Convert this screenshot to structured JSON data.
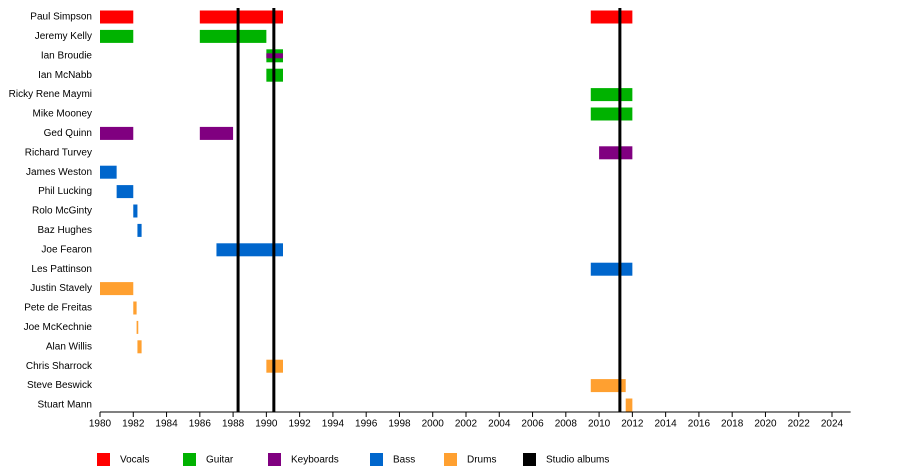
{
  "chart_data": {
    "type": "timeline",
    "categories": [
      "Paul Simpson",
      "Jeremy Kelly",
      "Ian Broudie",
      "Ian McNabb",
      "Ricky Rene Maymi",
      "Mike Mooney",
      "Ged Quinn",
      "Richard Turvey",
      "James Weston",
      "Phil Lucking",
      "Rolo McGinty",
      "Baz Hughes",
      "Joe Fearon",
      "Les Pattinson",
      "Justin Stavely",
      "Pete de Freitas",
      "Joe McKechnie",
      "Alan Willis",
      "Chris Sharrock",
      "Steve Beswick",
      "Stuart Mann"
    ],
    "series": [
      {
        "name": "Vocals",
        "color": "#ff0000",
        "values": [
          [
            [
              1980,
              1982
            ],
            [
              1986,
              1991
            ],
            [
              2009.5,
              2012
            ]
          ],
          [],
          [],
          [],
          [],
          [],
          [],
          [],
          [],
          [],
          [],
          [],
          [],
          [],
          [],
          [],
          [],
          [],
          [],
          [],
          []
        ]
      },
      {
        "name": "Guitar",
        "color": "#00b200",
        "values": [
          [],
          [
            [
              1980,
              1982
            ],
            [
              1986,
              1990
            ]
          ],
          [
            [
              1990,
              1991
            ]
          ],
          [
            [
              1990,
              1991
            ]
          ],
          [
            [
              2009.5,
              2012
            ]
          ],
          [
            [
              2009.5,
              2012
            ]
          ],
          [],
          [],
          [],
          [],
          [],
          [],
          [],
          [],
          [],
          [],
          [],
          [],
          [],
          [],
          []
        ]
      },
      {
        "name": "Keyboards",
        "color": "#800080",
        "values": [
          [],
          [],
          [
            [
              1990,
              1991
            ]
          ],
          [],
          [],
          [],
          [
            [
              1980,
              1982
            ],
            [
              1986,
              1988
            ]
          ],
          [
            [
              2010,
              2012
            ]
          ],
          [],
          [],
          [],
          [],
          [],
          [],
          [],
          [],
          [],
          [],
          [],
          [],
          []
        ]
      },
      {
        "name": "Bass",
        "color": "#0066cc",
        "values": [
          [],
          [],
          [],
          [],
          [],
          [],
          [],
          [],
          [
            [
              1980,
              1981
            ]
          ],
          [
            [
              1981,
              1982
            ]
          ],
          [
            [
              1982,
              1982.25
            ]
          ],
          [
            [
              1982.25,
              1982.5
            ]
          ],
          [
            [
              1987,
              1991
            ]
          ],
          [
            [
              2009.5,
              2012
            ]
          ],
          [],
          [],
          [],
          [],
          [],
          [],
          []
        ]
      },
      {
        "name": "Drums",
        "color": "#ffa030",
        "values": [
          [],
          [],
          [],
          [],
          [],
          [],
          [],
          [],
          [],
          [],
          [],
          [],
          [],
          [],
          [
            [
              1980,
              1982
            ]
          ],
          [
            [
              1982,
              1982.2
            ]
          ],
          [
            [
              1982.2,
              1982.3
            ]
          ],
          [
            [
              1982.25,
              1982.5
            ]
          ],
          [
            [
              1990,
              1991
            ]
          ],
          [
            [
              2009.5,
              2011.6
            ]
          ],
          [
            [
              2011.6,
              2012
            ]
          ]
        ]
      }
    ],
    "markers": {
      "name": "Studio albums",
      "color": "#000000",
      "values": [
        1988.3,
        1990.45,
        2011.25
      ]
    },
    "xlim": [
      1980,
      2025
    ],
    "xticks": [
      1980,
      1982,
      1984,
      1986,
      1988,
      1990,
      1992,
      1994,
      1996,
      1998,
      2000,
      2002,
      2004,
      2006,
      2008,
      2010,
      2012,
      2014,
      2016,
      2018,
      2020,
      2022,
      2024
    ]
  }
}
